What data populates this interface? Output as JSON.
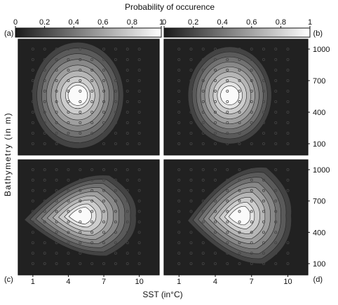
{
  "chart_data": {
    "type": "heatmap",
    "title": "Probability of occurence",
    "colorbar": {
      "min": 0,
      "max": 1,
      "ticks": [
        "0",
        "0.2",
        "0.4",
        "0.6",
        "0.8",
        "1"
      ],
      "colors": [
        "#1a1a1a",
        "#ffffff"
      ]
    },
    "xlabel": "SST (in°C)",
    "ylabel": "Bathymetry (in m)",
    "xticks": [
      "1",
      "4",
      "7",
      "10"
    ],
    "xtick_values": [
      1,
      4,
      7,
      10
    ],
    "yticks": [
      "100",
      "400",
      "700",
      "1000"
    ],
    "ytick_values": [
      100,
      400,
      700,
      1000
    ],
    "xlim": [
      0,
      11
    ],
    "ylim": [
      0,
      1100
    ],
    "panels": [
      {
        "label": "(a)",
        "peak": {
          "x": 4.8,
          "y": 560
        },
        "spread": {
          "x": 3.4,
          "y": 420
        },
        "max": 0.97,
        "shape": "ellipse"
      },
      {
        "label": "(b)",
        "peak": {
          "x": 5.2,
          "y": 560
        },
        "spread": {
          "x": 3.0,
          "y": 380
        },
        "max": 1.0,
        "shape": "ellipse"
      },
      {
        "label": "(c)",
        "peak": {
          "x": 5.0,
          "y": 560
        },
        "spread": {
          "x": 4.0,
          "y": 330
        },
        "max": 1.0,
        "shape": "wedge"
      },
      {
        "label": "(d)",
        "peak": {
          "x": 6.0,
          "y": 560
        },
        "spread": {
          "x": 3.6,
          "y": 400
        },
        "max": 1.0,
        "shape": "wedge"
      }
    ],
    "sample_points": {
      "x": [
        1,
        2,
        3,
        4,
        5,
        6,
        7,
        8,
        9,
        10
      ],
      "y": [
        100,
        200,
        300,
        400,
        500,
        600,
        700,
        800,
        900,
        1000
      ]
    },
    "grid": false,
    "legend": "top"
  }
}
